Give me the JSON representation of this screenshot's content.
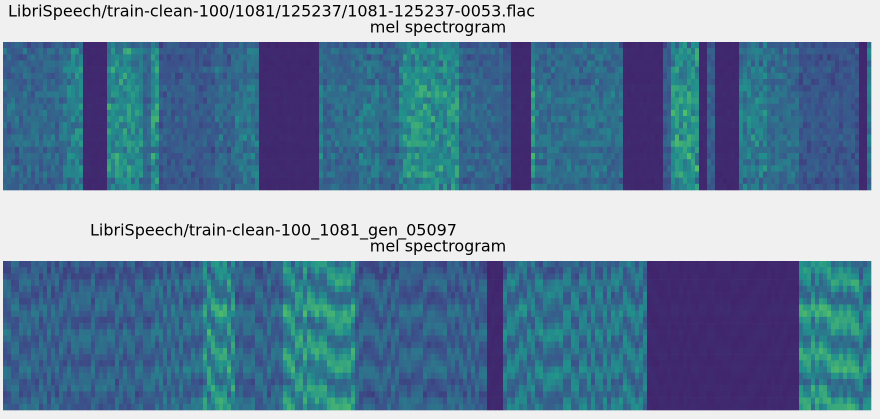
{
  "panels": [
    {
      "title": "LibriSpeech/train-clean-100/1081/125237/1081-125237-0053.flac",
      "subtitle": "mel spectrogram"
    },
    {
      "title": "LibriSpeech/train-clean-100_1081_gen_05097",
      "subtitle": "mel spectrogram"
    }
  ]
}
